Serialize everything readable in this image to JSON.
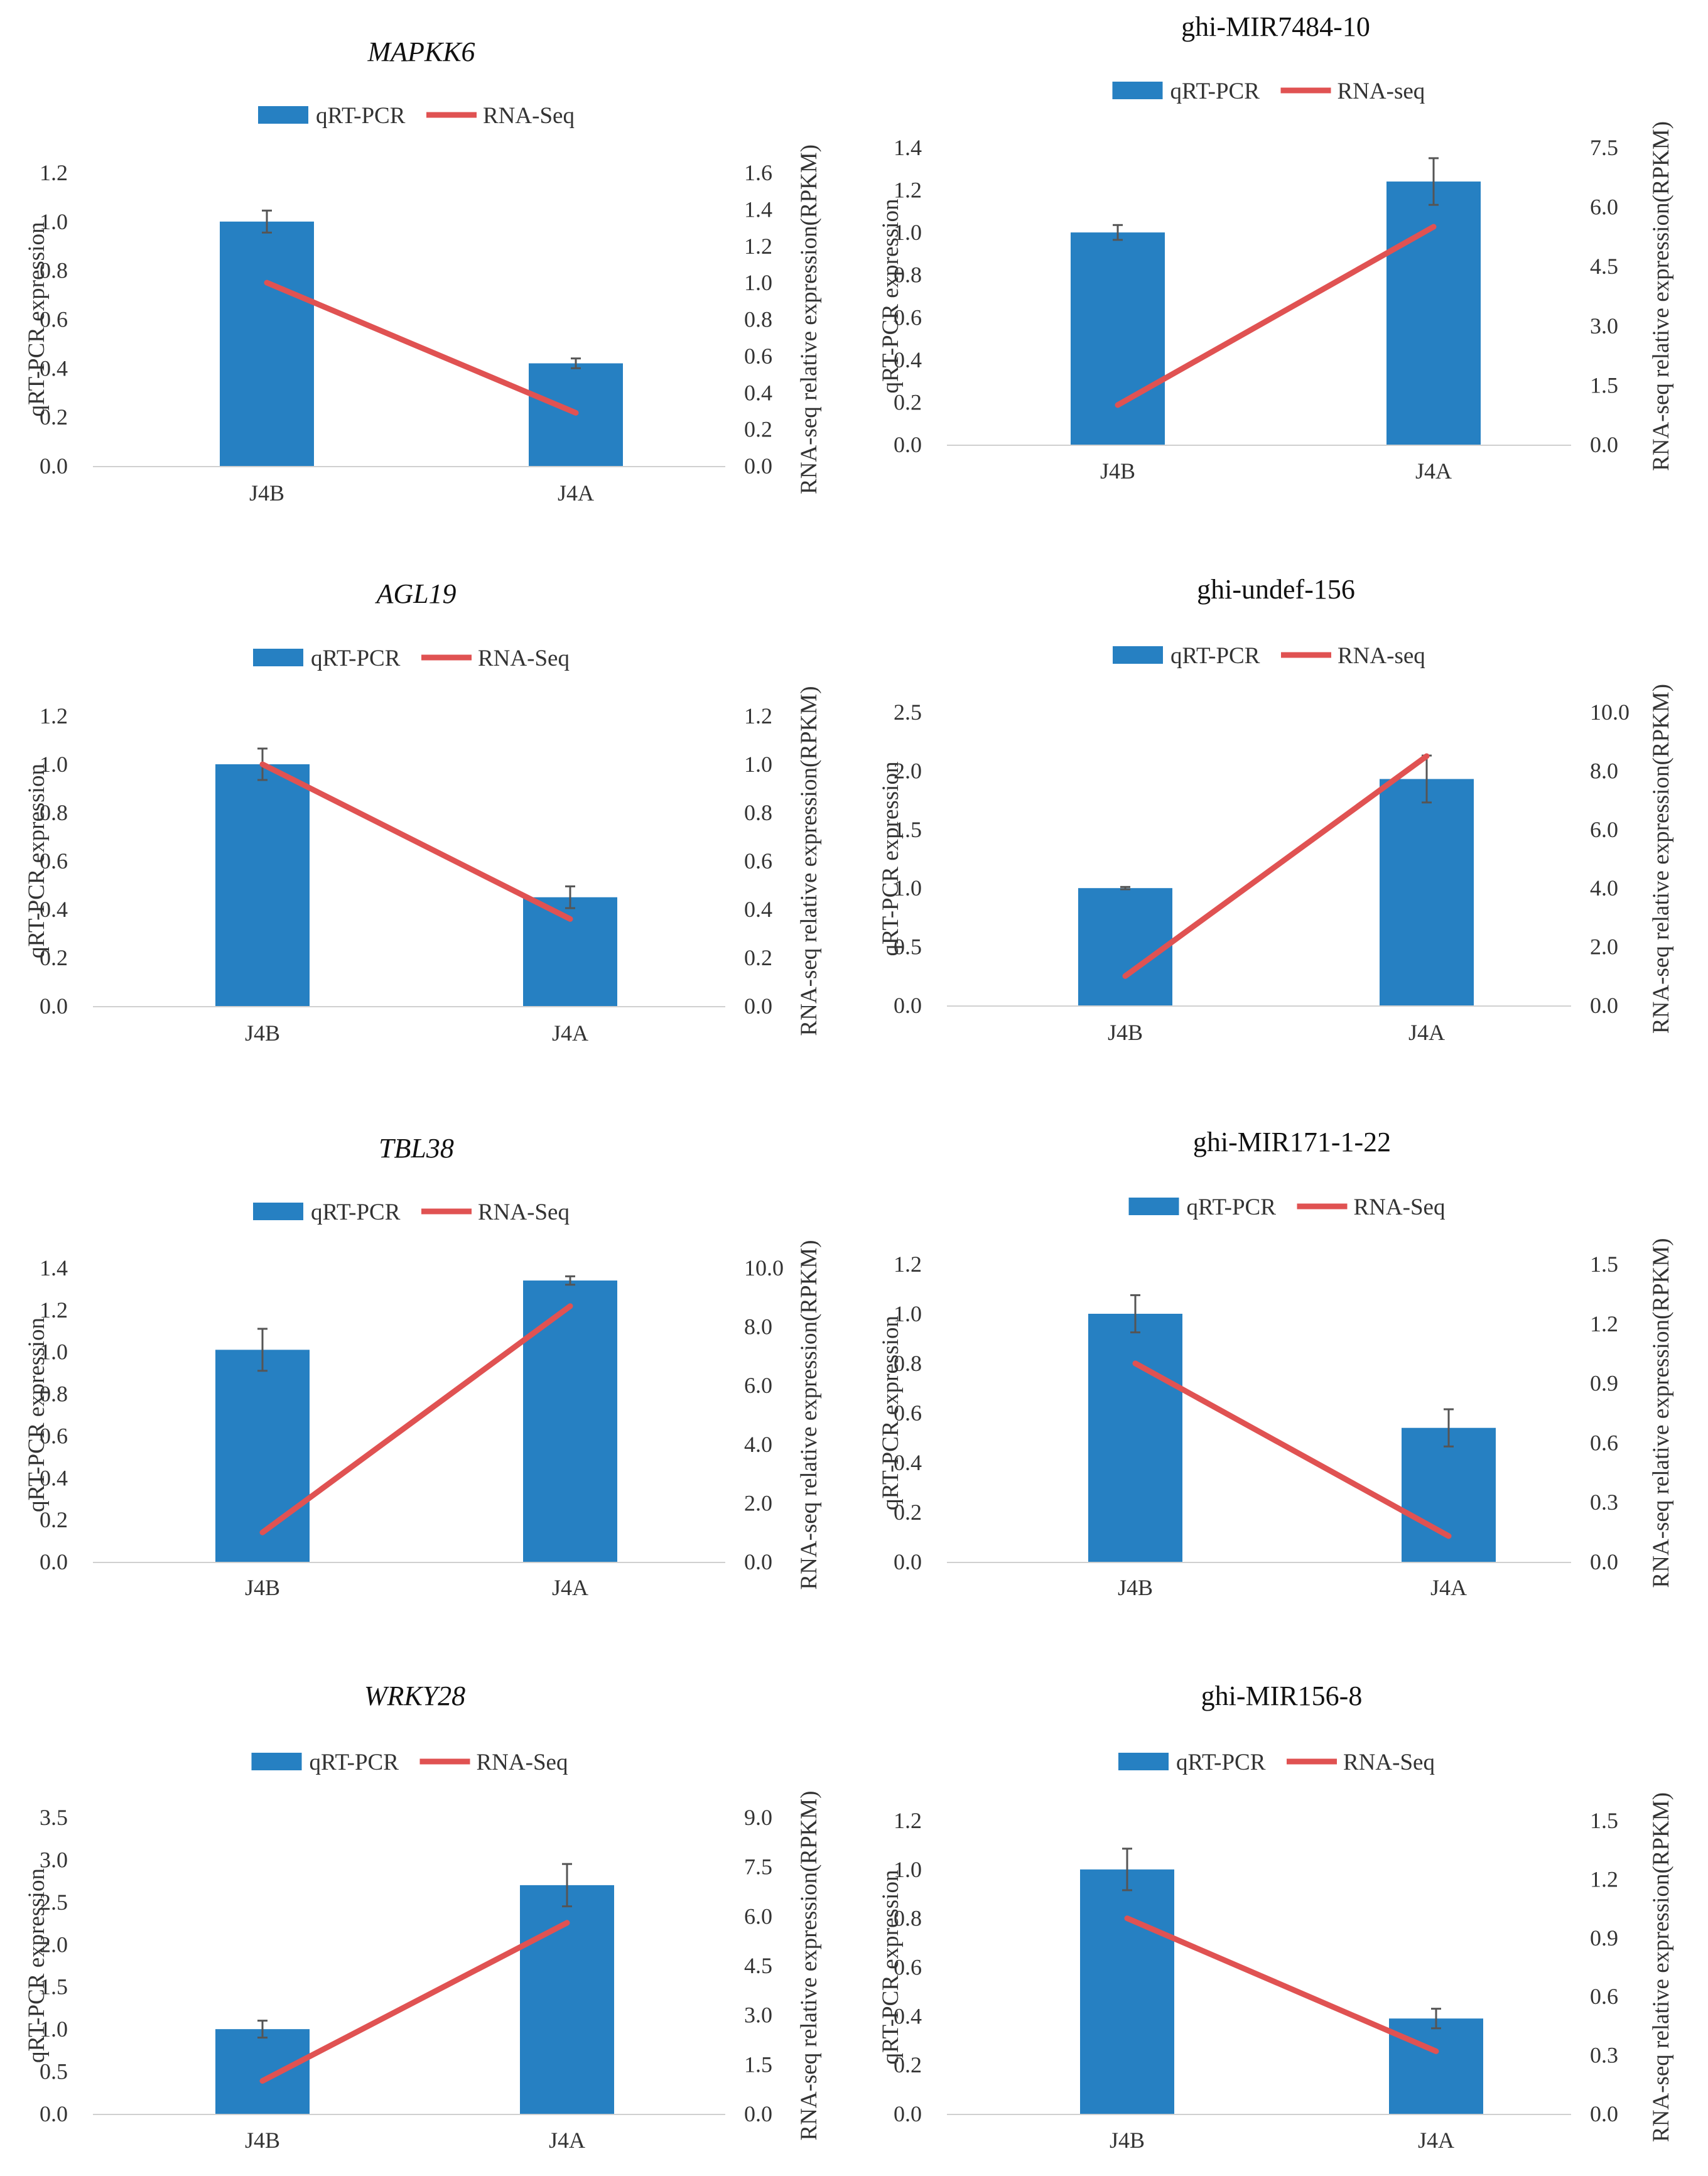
{
  "legend_bar_color": "#2680C2",
  "legend_line_color": "#E05252",
  "chart_data": [
    {
      "type": "bar+line",
      "title": "MAPKK6",
      "title_italic": true,
      "categories": [
        "J4B",
        "J4A"
      ],
      "series": [
        {
          "name": "qRT-PCR",
          "type": "bar",
          "axis": "left",
          "values": [
            1.0,
            0.42
          ],
          "error": [
            0.045,
            0.02
          ],
          "color": "#2680C2"
        },
        {
          "name": "RNA-Seq",
          "type": "line",
          "axis": "right",
          "values": [
            1.0,
            0.29
          ],
          "color": "#E05252"
        }
      ],
      "ylabel": "qRT-PCR expression",
      "y2label": "RNA-seq relative expression(RPKM)",
      "ylim": [
        0,
        1.2
      ],
      "yticks": [
        "0.0",
        "0.2",
        "0.4",
        "0.6",
        "0.8",
        "1.0",
        "1.2"
      ],
      "y2lim": [
        0,
        1.6
      ],
      "y2ticks": [
        "0.0",
        "0.2",
        "0.4",
        "0.6",
        "0.8",
        "1.0",
        "1.2",
        "1.4",
        "1.6"
      ],
      "legend_position": "top"
    },
    {
      "type": "bar+line",
      "title": "ghi-MIR7484-10",
      "title_italic": false,
      "categories": [
        "J4B",
        "J4A"
      ],
      "series": [
        {
          "name": "qRT-PCR",
          "type": "bar",
          "axis": "left",
          "values": [
            1.0,
            1.24
          ],
          "error": [
            0.035,
            0.11
          ],
          "color": "#2680C2"
        },
        {
          "name": "RNA-seq",
          "type": "line",
          "axis": "right",
          "values": [
            1.0,
            5.5
          ],
          "color": "#E05252"
        }
      ],
      "ylabel": "qRT-PCR expression",
      "y2label": "RNA-seq relative expression(RPKM)",
      "ylim": [
        0,
        1.4
      ],
      "yticks": [
        "0.0",
        "0.2",
        "0.4",
        "0.6",
        "0.8",
        "1.0",
        "1.2",
        "1.4"
      ],
      "y2lim": [
        0,
        7.5
      ],
      "y2ticks": [
        "0.0",
        "1.5",
        "3.0",
        "4.5",
        "6.0",
        "7.5"
      ],
      "legend_position": "top"
    },
    {
      "type": "bar+line",
      "title": "AGL19",
      "title_italic": true,
      "categories": [
        "J4B",
        "J4A"
      ],
      "series": [
        {
          "name": "qRT-PCR",
          "type": "bar",
          "axis": "left",
          "values": [
            1.0,
            0.45
          ],
          "error": [
            0.065,
            0.045
          ],
          "color": "#2680C2"
        },
        {
          "name": "RNA-Seq",
          "type": "line",
          "axis": "right",
          "values": [
            1.0,
            0.36
          ],
          "color": "#E05252"
        }
      ],
      "ylabel": "qRT-PCR expression",
      "y2label": "RNA-seq relative expression(RPKM)",
      "ylim": [
        0,
        1.2
      ],
      "yticks": [
        "0.0",
        "0.2",
        "0.4",
        "0.6",
        "0.8",
        "1.0",
        "1.2"
      ],
      "y2lim": [
        0,
        1.2
      ],
      "y2ticks": [
        "0.0",
        "0.2",
        "0.4",
        "0.6",
        "0.8",
        "1.0",
        "1.2"
      ],
      "legend_position": "top"
    },
    {
      "type": "bar+line",
      "title": "ghi-undef-156",
      "title_italic": false,
      "categories": [
        "J4B",
        "J4A"
      ],
      "series": [
        {
          "name": "qRT-PCR",
          "type": "bar",
          "axis": "left",
          "values": [
            1.0,
            1.93
          ],
          "error": [
            0.01,
            0.2
          ],
          "color": "#2680C2"
        },
        {
          "name": "RNA-seq",
          "type": "line",
          "axis": "right",
          "values": [
            1.0,
            8.5
          ],
          "color": "#E05252"
        }
      ],
      "ylabel": "qRT-PCR expression",
      "y2label": "RNA-seq relative expression(RPKM)",
      "ylim": [
        0,
        2.5
      ],
      "yticks": [
        "0.0",
        "0.5",
        "1.0",
        "1.5",
        "2.0",
        "2.5"
      ],
      "y2lim": [
        0,
        10.0
      ],
      "y2ticks": [
        "0.0",
        "2.0",
        "4.0",
        "6.0",
        "8.0",
        "10.0"
      ],
      "legend_position": "top"
    },
    {
      "type": "bar+line",
      "title": "TBL38",
      "title_italic": true,
      "categories": [
        "J4B",
        "J4A"
      ],
      "series": [
        {
          "name": "qRT-PCR",
          "type": "bar",
          "axis": "left",
          "values": [
            1.01,
            1.34
          ],
          "error": [
            0.1,
            0.02
          ],
          "color": "#2680C2"
        },
        {
          "name": "RNA-Seq",
          "type": "line",
          "axis": "right",
          "values": [
            1.0,
            8.7
          ],
          "color": "#E05252"
        }
      ],
      "ylabel": "qRT-PCR expression",
      "y2label": "RNA-seq relative expression(RPKM)",
      "ylim": [
        0,
        1.4
      ],
      "yticks": [
        "0.0",
        "0.2",
        "0.4",
        "0.6",
        "0.8",
        "1.0",
        "1.2",
        "1.4"
      ],
      "y2lim": [
        0,
        10.0
      ],
      "y2ticks": [
        "0.0",
        "2.0",
        "4.0",
        "6.0",
        "8.0",
        "10.0"
      ],
      "legend_position": "top"
    },
    {
      "type": "bar+line",
      "title": "ghi-MIR171-1-22",
      "title_italic": false,
      "categories": [
        "J4B",
        "J4A"
      ],
      "series": [
        {
          "name": "qRT-PCR",
          "type": "bar",
          "axis": "left",
          "values": [
            1.0,
            0.54
          ],
          "error": [
            0.075,
            0.075
          ],
          "color": "#2680C2"
        },
        {
          "name": "RNA-Seq",
          "type": "line",
          "axis": "right",
          "values": [
            1.0,
            0.13
          ],
          "color": "#E05252"
        }
      ],
      "ylabel": "qRT-PCR expression",
      "y2label": "RNA-seq relative expression(RPKM)",
      "ylim": [
        0,
        1.2
      ],
      "yticks": [
        "0.0",
        "0.2",
        "0.4",
        "0.6",
        "0.8",
        "1.0",
        "1.2"
      ],
      "y2lim": [
        0,
        1.5
      ],
      "y2ticks": [
        "0.0",
        "0.3",
        "0.6",
        "0.9",
        "1.2",
        "1.5"
      ],
      "legend_position": "top"
    },
    {
      "type": "bar+line",
      "title": "WRKY28",
      "title_italic": true,
      "categories": [
        "J4B",
        "J4A"
      ],
      "series": [
        {
          "name": "qRT-PCR",
          "type": "bar",
          "axis": "left",
          "values": [
            1.0,
            2.7
          ],
          "error": [
            0.1,
            0.25
          ],
          "color": "#2680C2"
        },
        {
          "name": "RNA-Seq",
          "type": "line",
          "axis": "right",
          "values": [
            1.0,
            5.8
          ],
          "color": "#E05252"
        }
      ],
      "ylabel": "qRT-PCR expression",
      "y2label": "RNA-seq relative expression(RPKM)",
      "ylim": [
        0,
        3.5
      ],
      "yticks": [
        "0.0",
        "0.5",
        "1.0",
        "1.5",
        "2.0",
        "2.5",
        "3.0",
        "3.5"
      ],
      "y2lim": [
        0,
        9.0
      ],
      "y2ticks": [
        "0.0",
        "1.5",
        "3.0",
        "4.5",
        "6.0",
        "7.5",
        "9.0"
      ],
      "legend_position": "top"
    },
    {
      "type": "bar+line",
      "title": "ghi-MIR156-8",
      "title_italic": false,
      "categories": [
        "J4B",
        "J4A"
      ],
      "series": [
        {
          "name": "qRT-PCR",
          "type": "bar",
          "axis": "left",
          "values": [
            1.0,
            0.39
          ],
          "error": [
            0.085,
            0.04
          ],
          "color": "#2680C2"
        },
        {
          "name": "RNA-Seq",
          "type": "line",
          "axis": "right",
          "values": [
            1.0,
            0.32
          ],
          "color": "#E05252"
        }
      ],
      "ylabel": "qRT-PCR expression",
      "y2label": "RNA-seq relative expression(RPKM)",
      "ylim": [
        0,
        1.2
      ],
      "yticks": [
        "0.0",
        "0.2",
        "0.4",
        "0.6",
        "0.8",
        "1.0",
        "1.2"
      ],
      "y2lim": [
        0,
        1.5
      ],
      "y2ticks": [
        "0.0",
        "0.3",
        "0.6",
        "0.9",
        "1.2",
        "1.5"
      ],
      "legend_position": "top"
    }
  ]
}
